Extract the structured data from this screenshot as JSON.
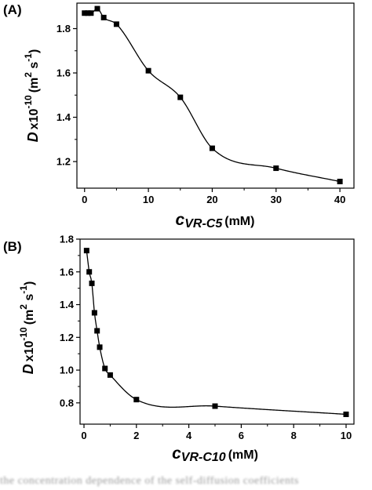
{
  "chart_data": [
    {
      "type": "scatter",
      "panel_label": "(A)",
      "x": [
        0,
        0.5,
        1,
        2,
        3,
        5,
        10,
        15,
        20,
        30,
        40
      ],
      "y": [
        1.87,
        1.87,
        1.87,
        1.89,
        1.85,
        1.82,
        1.61,
        1.49,
        1.26,
        1.17,
        1.11
      ],
      "xlim": [
        -1.2,
        42.2
      ],
      "ylim": [
        1.08,
        1.915
      ],
      "xticks": [
        0,
        10,
        20,
        30,
        40
      ],
      "yticks": [
        1.2,
        1.4,
        1.6,
        1.8
      ],
      "xtick_labels": [
        "0",
        "10",
        "20",
        "30",
        "40"
      ],
      "ytick_labels": [
        "1.2",
        "1.4",
        "1.6",
        "1.8"
      ],
      "xlabel": {
        "c": "c",
        "sub": "VR-C5",
        "unit": "(mM)"
      },
      "ylabel": {
        "d": "D",
        "times": "x10",
        "exp": "-10",
        "unit_open": "(m",
        "two": "2",
        "s": " s",
        "minus_one": "-1",
        "close": ")"
      },
      "fit_curve": true,
      "marker": "square",
      "grid": false
    },
    {
      "type": "scatter",
      "panel_label": "(B)",
      "x": [
        0.1,
        0.2,
        0.3,
        0.4,
        0.5,
        0.6,
        0.8,
        1.0,
        2.0,
        5.0,
        10.0
      ],
      "y": [
        1.73,
        1.6,
        1.53,
        1.35,
        1.24,
        1.14,
        1.01,
        0.97,
        0.82,
        0.78,
        0.73
      ],
      "xlim": [
        -0.15,
        10.3
      ],
      "ylim": [
        0.67,
        1.8
      ],
      "xticks": [
        0,
        2,
        4,
        6,
        8,
        10
      ],
      "yticks": [
        0.8,
        1.0,
        1.2,
        1.4,
        1.6,
        1.8
      ],
      "xtick_labels": [
        "0",
        "2",
        "4",
        "6",
        "8",
        "10"
      ],
      "ytick_labels": [
        "0.8",
        "1.0",
        "1.2",
        "1.4",
        "1.6",
        "1.8"
      ],
      "xlabel": {
        "c": "c",
        "sub": "VR-C10",
        "unit": "(mM)"
      },
      "ylabel": {
        "d": "D",
        "times": "x10",
        "exp": "-10",
        "unit_open": "(m",
        "two": "2",
        "s": " s",
        "minus_one": "-1",
        "close": ")"
      },
      "fit_curve": true,
      "marker": "square",
      "grid": false
    }
  ],
  "caption_text": "the concentration dependence of the self-diffusion coefficients"
}
